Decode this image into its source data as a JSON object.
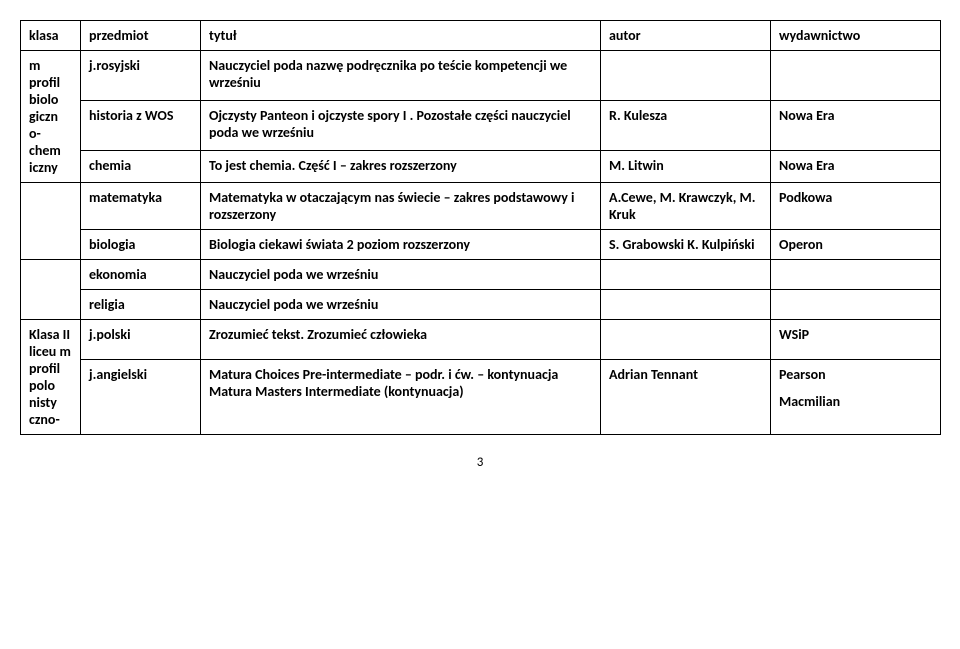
{
  "headers": {
    "klasa": "klasa",
    "przedmiot": "przedmiot",
    "tytul": "tytuł",
    "autor": "autor",
    "wyd": "wydawnictwo"
  },
  "sec1": {
    "klasa": "m profil biolo giczn o- chem iczny",
    "r1": {
      "przedmiot": "j.rosyjski",
      "tytul": "Nauczyciel poda nazwę podręcznika po teście kompetencji we wrześniu"
    },
    "r2": {
      "przedmiot": "historia z WOS",
      "tytul": "Ojczysty Panteon i ojczyste spory I . Pozostałe części nauczyciel poda we wrześniu",
      "autor": "R. Kulesza",
      "wyd": "Nowa Era"
    },
    "r3": {
      "przedmiot": "chemia",
      "tytul": "To jest chemia. Część I – zakres rozszerzony",
      "autor": "M. Litwin",
      "wyd": "Nowa Era"
    }
  },
  "sec2": {
    "r1": {
      "przedmiot": "matematyka",
      "tytul": "Matematyka w otaczającym nas świecie – zakres podstawowy i rozszerzony",
      "autor": "A.Cewe, M. Krawczyk, M. Kruk",
      "wyd": "Podkowa"
    },
    "r2": {
      "przedmiot": "biologia",
      "tytul": "Biologia ciekawi świata 2 poziom rozszerzony",
      "autor": "S. Grabowski K. Kulpiński",
      "wyd": "Operon"
    }
  },
  "sec3": {
    "r1": {
      "przedmiot": "ekonomia",
      "tytul": "Nauczyciel poda we wrześniu"
    },
    "r2": {
      "przedmiot": "religia",
      "tytul": "Nauczyciel poda we wrześniu"
    }
  },
  "sec4": {
    "klasa": "Klasa II liceu m profil polo nisty czno-",
    "r1": {
      "przedmiot": "j.polski",
      "tytul": "Zrozumieć tekst. Zrozumieć człowieka",
      "wyd": "WSiP"
    },
    "r2": {
      "przedmiot": "j.angielski",
      "tytul": "Matura Choices Pre-intermediate – podr. i ćw. – kontynuacja Matura Masters Intermediate (kontynuacja)",
      "autor": "Adrian Tennant",
      "wyd1": "Pearson",
      "wyd2": "Macmilian"
    }
  },
  "page": "3"
}
